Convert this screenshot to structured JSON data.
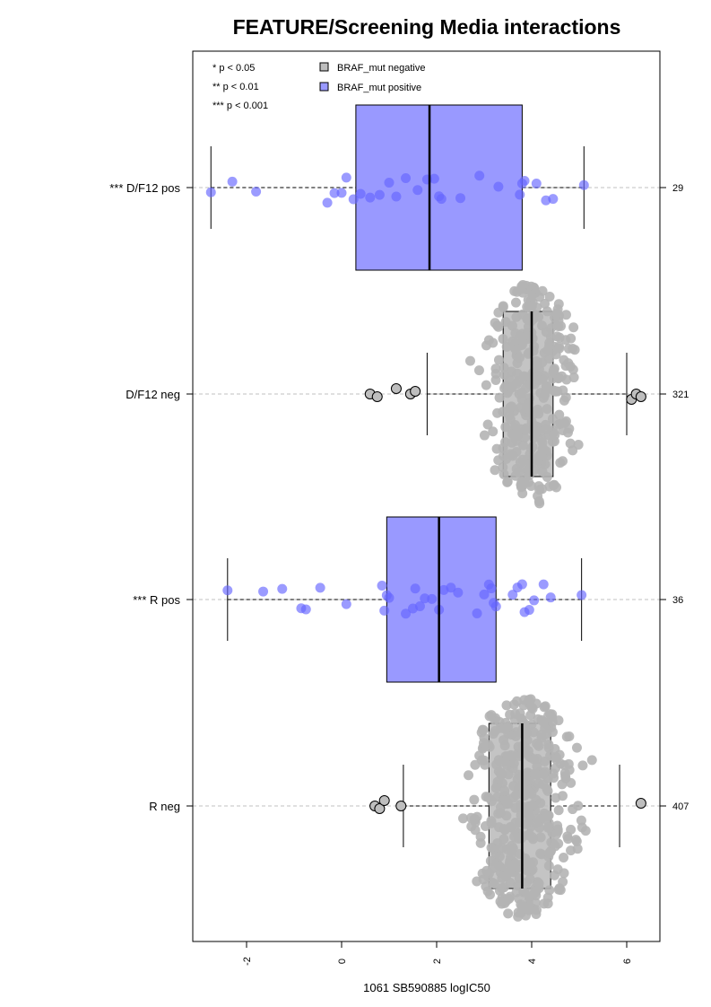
{
  "chart_data": {
    "type": "boxplot",
    "title": "FEATURE/Screening Media interactions",
    "xlabel": "1061 SB590885 logIC50",
    "xlim": [
      -3.2,
      6.6
    ],
    "x_ticks": [
      -2,
      0,
      2,
      4,
      6
    ],
    "x_tick_labels": [
      "-2",
      "0",
      "2",
      "4",
      "6"
    ],
    "orientation": "horizontal",
    "significance_legend": [
      "* p < 0.05",
      "** p < 0.01",
      "*** p < 0.001"
    ],
    "legend": [
      {
        "label": "BRAF_mut negative",
        "color": "#bebebe"
      },
      {
        "label": "BRAF_mut positive",
        "color": "#9999ff"
      }
    ],
    "groups": [
      {
        "label": "*** D/F12 pos",
        "count": "29",
        "mutation": "positive",
        "color": "#9999ff",
        "point_color": "#6666ff",
        "whisker_low": -2.75,
        "q1": 0.3,
        "median": 1.85,
        "q3": 3.8,
        "whisker_high": 5.1,
        "outliers": [],
        "points": [
          -2.75,
          -2.3,
          -1.8,
          -0.3,
          -0.15,
          0.0,
          0.1,
          0.25,
          0.4,
          0.6,
          0.8,
          1.0,
          1.15,
          1.35,
          1.6,
          1.8,
          1.95,
          2.05,
          2.1,
          2.5,
          2.9,
          3.3,
          3.75,
          3.8,
          3.85,
          4.1,
          4.3,
          4.45,
          5.1
        ]
      },
      {
        "label": "D/F12 neg",
        "count": "321",
        "mutation": "negative",
        "color": "#bebebe",
        "point_color": "#b4b4b4",
        "whisker_low": 1.8,
        "q1": 3.4,
        "median": 4.0,
        "q3": 4.45,
        "whisker_high": 6.0,
        "outliers": [
          0.6,
          0.75,
          1.15,
          1.45,
          1.55,
          6.1,
          6.2,
          6.3
        ],
        "points_summary": {
          "n": 321,
          "min": 0.6,
          "max": 6.3
        }
      },
      {
        "label": "*** R pos",
        "count": "36",
        "mutation": "positive",
        "color": "#9999ff",
        "point_color": "#6666ff",
        "whisker_low": -2.4,
        "q1": 0.95,
        "median": 2.05,
        "q3": 3.25,
        "whisker_high": 5.05,
        "outliers": [],
        "points": [
          -2.4,
          -1.65,
          -1.25,
          -0.85,
          -0.75,
          -0.45,
          0.1,
          0.85,
          0.9,
          0.95,
          1.0,
          1.35,
          1.5,
          1.55,
          1.65,
          1.75,
          1.9,
          2.05,
          2.15,
          2.3,
          2.45,
          2.85,
          3.0,
          3.1,
          3.15,
          3.2,
          3.25,
          3.6,
          3.7,
          3.8,
          3.85,
          3.95,
          4.05,
          4.25,
          4.4,
          5.05
        ]
      },
      {
        "label": "R neg",
        "count": "407",
        "mutation": "negative",
        "color": "#bebebe",
        "point_color": "#b4b4b4",
        "whisker_low": 1.3,
        "q1": 3.1,
        "median": 3.8,
        "q3": 4.4,
        "whisker_high": 5.85,
        "outliers": [
          0.7,
          0.8,
          0.9,
          1.25,
          6.3
        ],
        "points_summary": {
          "n": 407,
          "min": 0.7,
          "max": 6.3
        }
      }
    ]
  }
}
